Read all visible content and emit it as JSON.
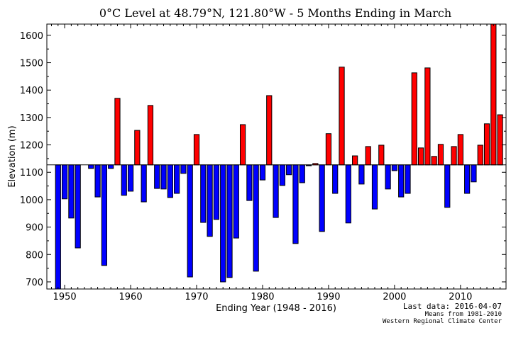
{
  "chart_data": {
    "type": "bar",
    "title": "0°C Level at 48.79°N, 121.80°W - 5 Months Ending in March",
    "xlabel": "Ending Year (1948 - 2016)",
    "ylabel": "Elevation (m)",
    "ylim": [
      674,
      1641
    ],
    "xlim": [
      1947.3,
      2016.9
    ],
    "baseline": 1127,
    "grid": false,
    "above_color": "#ff0000",
    "below_color": "#0000ff",
    "xticks": [
      1950,
      1960,
      1970,
      1980,
      1990,
      2000,
      2010
    ],
    "yticks": [
      700,
      800,
      900,
      1000,
      1100,
      1200,
      1300,
      1400,
      1500,
      1600
    ],
    "x": [
      1948,
      1949,
      1950,
      1951,
      1952,
      1953,
      1954,
      1955,
      1956,
      1957,
      1958,
      1959,
      1960,
      1961,
      1962,
      1963,
      1964,
      1965,
      1966,
      1967,
      1968,
      1969,
      1970,
      1971,
      1972,
      1973,
      1974,
      1975,
      1976,
      1977,
      1978,
      1979,
      1980,
      1981,
      1982,
      1983,
      1984,
      1985,
      1986,
      1987,
      1988,
      1989,
      1990,
      1991,
      1992,
      1993,
      1994,
      1995,
      1996,
      1997,
      1998,
      1999,
      2000,
      2001,
      2002,
      2003,
      2004,
      2005,
      2006,
      2007,
      2008,
      2009,
      2010,
      2011,
      2012,
      2013,
      2014,
      2015,
      2016
    ],
    "values": [
      null,
      660,
      1003,
      933,
      824,
      null,
      1114,
      1010,
      760,
      1114,
      1370,
      1016,
      1031,
      1253,
      992,
      1344,
      1041,
      1039,
      1008,
      1023,
      1096,
      718,
      1238,
      917,
      866,
      928,
      700,
      716,
      860,
      1274,
      997,
      739,
      1072,
      1380,
      935,
      1052,
      1091,
      840,
      1062,
      1124,
      1132,
      884,
      1241,
      1023,
      1484,
      915,
      1160,
      1057,
      1194,
      966,
      1199,
      1039,
      1106,
      1010,
      1023,
      1463,
      1189,
      1481,
      1158,
      1202,
      972,
      1194,
      1238,
      1023,
      1065,
      1199,
      1277,
      1660,
      1310
    ]
  },
  "footer": {
    "last_data": "Last data: 2016-04-07",
    "means": "Means from 1981-2010",
    "source": "Western Regional Climate Center"
  }
}
